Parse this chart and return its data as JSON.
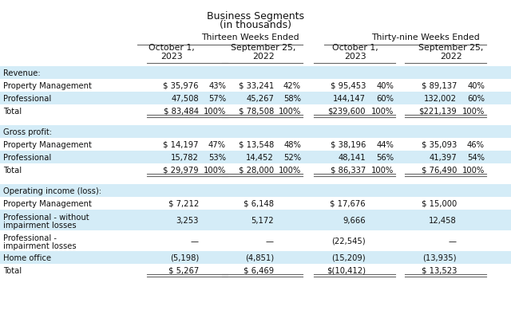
{
  "title_line1": "Business Segments",
  "title_line2": "(in thousands)",
  "group_header1": "Thirteen Weeks Ended",
  "group_header2": "Thirty-nine Weeks Ended",
  "col_headers": [
    [
      "October 1,",
      "2023"
    ],
    [
      "September 25,",
      "2022"
    ],
    [
      "October 1,",
      "2023"
    ],
    [
      "September 25,",
      "2022"
    ]
  ],
  "sections": [
    {
      "label": "Revenue:",
      "rows": [
        {
          "label": "Property Management",
          "v1": "$ 35,976",
          "p1": "43%",
          "v2": "$ 33,241",
          "p2": "42%",
          "v3": "$ 95,453",
          "p3": "40%",
          "v4": "$ 89,137",
          "p4": "40%",
          "shade": true,
          "total": false
        },
        {
          "label": "Professional",
          "v1": "47,508",
          "p1": "57%",
          "v2": "45,267",
          "p2": "58%",
          "v3": "144,147",
          "p3": "60%",
          "v4": "132,002",
          "p4": "60%",
          "shade": false,
          "total": false
        },
        {
          "label": "Total",
          "v1": "$ 83,484",
          "p1": "100%",
          "v2": "$ 78,508",
          "p2": "100%",
          "v3": "$239,600",
          "p3": "100%",
          "v4": "$221,139",
          "p4": "100%",
          "shade": true,
          "total": true
        }
      ]
    },
    {
      "label": "Gross profit:",
      "rows": [
        {
          "label": "Property Management",
          "v1": "$ 14,197",
          "p1": "47%",
          "v2": "$ 13,548",
          "p2": "48%",
          "v3": "$ 38,196",
          "p3": "44%",
          "v4": "$ 35,093",
          "p4": "46%",
          "shade": true,
          "total": false
        },
        {
          "label": "Professional",
          "v1": "15,782",
          "p1": "53%",
          "v2": "14,452",
          "p2": "52%",
          "v3": "48,141",
          "p3": "56%",
          "v4": "41,397",
          "p4": "54%",
          "shade": false,
          "total": false
        },
        {
          "label": "Total",
          "v1": "$ 29,979",
          "p1": "100%",
          "v2": "$ 28,000",
          "p2": "100%",
          "v3": "$ 86,337",
          "p3": "100%",
          "v4": "$ 76,490",
          "p4": "100%",
          "shade": true,
          "total": true
        }
      ]
    },
    {
      "label": "Operating income (loss):",
      "rows": [
        {
          "label": "Property Management",
          "v1": "$ 7,212",
          "p1": "",
          "v2": "$ 6,148",
          "p2": "",
          "v3": "$ 17,676",
          "p3": "",
          "v4": "$ 15,000",
          "p4": "",
          "shade": true,
          "total": false,
          "ml": false
        },
        {
          "label": "Professional - without\nimpairment losses",
          "v1": "3,253",
          "p1": "",
          "v2": "5,172",
          "p2": "",
          "v3": "9,666",
          "p3": "",
          "v4": "12,458",
          "p4": "",
          "shade": false,
          "total": false,
          "ml": true
        },
        {
          "label": "Professional -\nimpairment losses",
          "v1": "—",
          "p1": "",
          "v2": "—",
          "p2": "",
          "v3": "(22,545)",
          "p3": "",
          "v4": "—",
          "p4": "",
          "shade": true,
          "total": false,
          "ml": true
        },
        {
          "label": "Home office",
          "v1": "(5,198)",
          "p1": "",
          "v2": "(4,851)",
          "p2": "",
          "v3": "(15,209)",
          "p3": "",
          "v4": "(13,935)",
          "p4": "",
          "shade": false,
          "total": false,
          "ml": false
        },
        {
          "label": "Total",
          "v1": "$ 5,267",
          "p1": "",
          "v2": "$ 6,469",
          "p2": "",
          "v3": "$(10,412)",
          "p3": "",
          "v4": "$ 13,523",
          "p4": "",
          "shade": true,
          "total": true,
          "ml": false
        }
      ]
    }
  ],
  "shade_color": "#d4ecf7",
  "bg_color": "#ffffff"
}
